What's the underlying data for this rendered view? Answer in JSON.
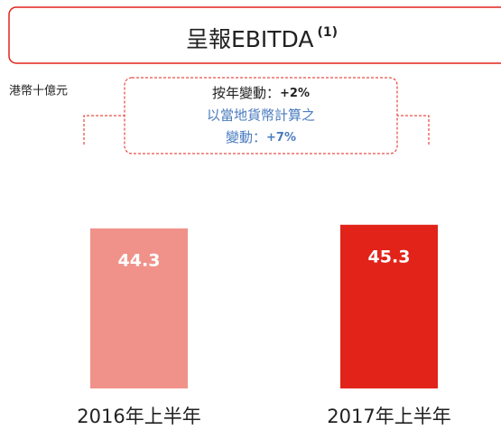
{
  "chart_data": {
    "type": "bar",
    "title": "呈報EBITDA",
    "title_note": "(1)",
    "unit_label": "港幣十億元",
    "annotation": {
      "line1_label": "按年變動：",
      "line1_value": "+2%",
      "line2": "以當地貨幣計算之",
      "line3_label": "變動：",
      "line3_value": "+7%"
    },
    "categories": [
      "2016年上半年",
      "2017年上半年"
    ],
    "values": [
      44.3,
      45.3
    ],
    "colors": [
      "#f0928a",
      "#e2231a"
    ]
  }
}
